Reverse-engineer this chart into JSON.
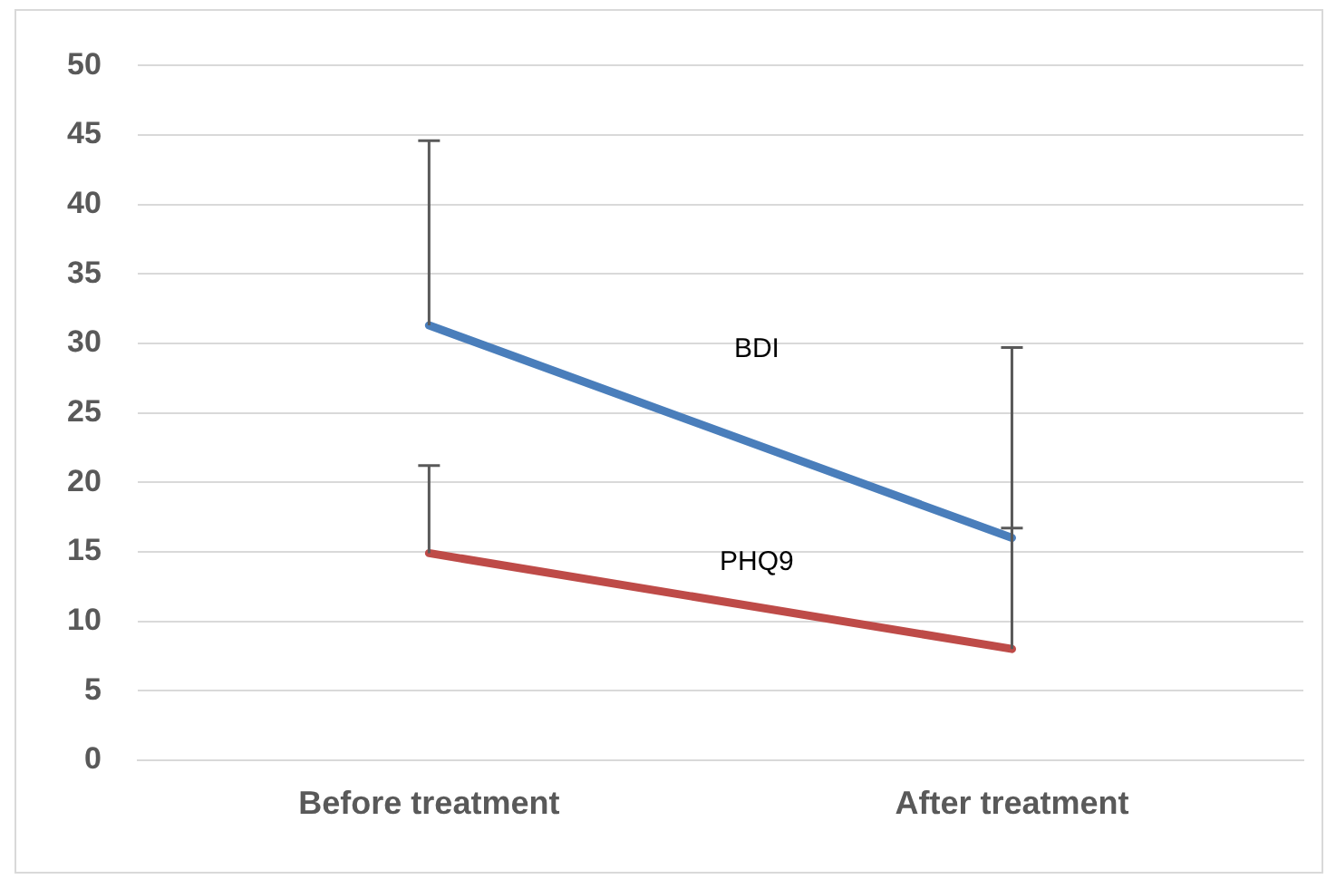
{
  "chart_data": {
    "type": "line",
    "categories": [
      "Before treatment",
      "After treatment"
    ],
    "series": [
      {
        "name": "BDI",
        "color": "#4a7ebb",
        "values": [
          31.3,
          16.0
        ],
        "errors": [
          [
            31.3,
            44.6
          ],
          [
            16.0,
            29.7
          ]
        ]
      },
      {
        "name": "PHQ9",
        "color": "#be4b48",
        "values": [
          14.9,
          8.0
        ],
        "errors": [
          [
            14.9,
            21.2
          ],
          [
            8.0,
            16.7
          ]
        ]
      }
    ],
    "ylim": [
      0,
      50
    ],
    "yticks": [
      0,
      5,
      10,
      15,
      20,
      25,
      30,
      35,
      40,
      45,
      50
    ],
    "grid": "y",
    "legend": false,
    "marker": "none",
    "line_style": "solid"
  }
}
